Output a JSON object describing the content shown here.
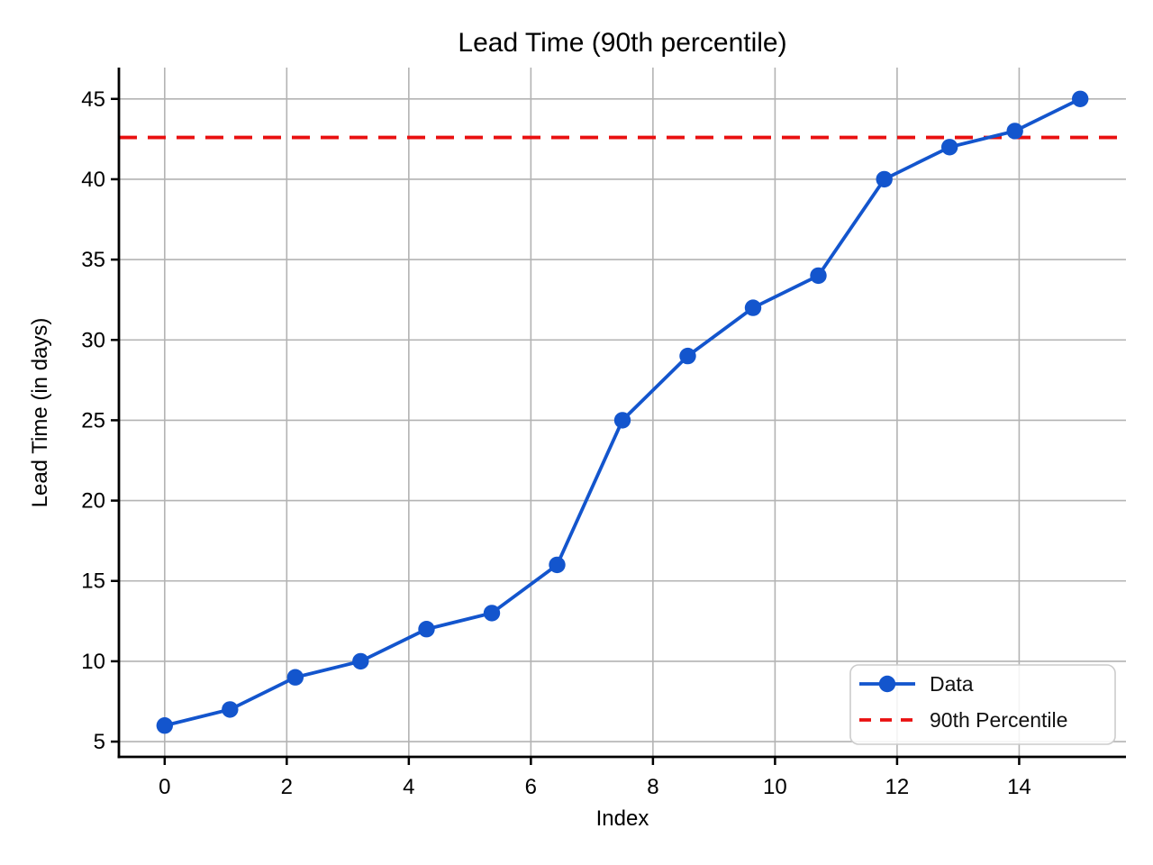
{
  "figure": {
    "title": "Lead Time (90th percentile)"
  },
  "chart_data": {
    "type": "line",
    "title": "Lead Time (90th percentile)",
    "xlabel": "Index",
    "ylabel": "Lead Time (in days)",
    "x": [
      0,
      1.07,
      2.14,
      3.21,
      4.29,
      5.36,
      6.43,
      7.5,
      8.57,
      9.64,
      10.71,
      11.79,
      12.86,
      13.93,
      15
    ],
    "y": [
      6,
      7,
      9,
      10,
      12,
      13,
      16,
      25,
      29,
      32,
      34,
      40,
      42,
      43,
      45
    ],
    "series_name": "Data",
    "reference_line": {
      "label": "90th Percentile",
      "value": 42.6,
      "style": "dashed"
    },
    "xticks": [
      0,
      2,
      4,
      6,
      8,
      10,
      12,
      14
    ],
    "yticks": [
      5,
      10,
      15,
      20,
      25,
      30,
      35,
      40,
      45
    ],
    "xlim": [
      -0.75,
      15.75
    ],
    "ylim": [
      4.05,
      46.95
    ],
    "grid": true,
    "legend": {
      "position": "lower right",
      "entries": [
        "Data",
        "90th Percentile"
      ]
    },
    "colors": {
      "series": "#1355cd",
      "reference": "#e91010",
      "grid": "#b3b3b3",
      "spine": "#000000",
      "legend_border": "#cccccc"
    }
  }
}
